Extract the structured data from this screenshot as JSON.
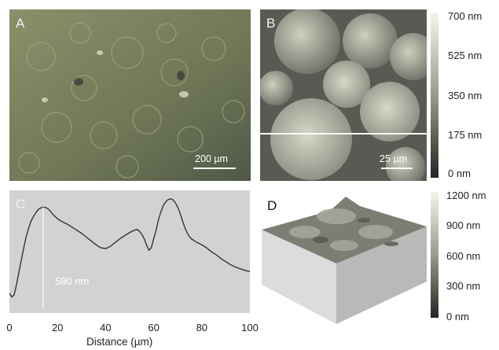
{
  "panels": {
    "a": {
      "label": "A",
      "scale_bar": "200 µm"
    },
    "b": {
      "label": "B",
      "scale_bar": "25 µm",
      "colorbar_labels": [
        "700 nm",
        "525 nm",
        "350 nm",
        "175 nm",
        "0 nm"
      ]
    },
    "c": {
      "label": "C",
      "annotation": "590 nm"
    },
    "d": {
      "label": "D",
      "colorbar_labels": [
        "1200 nm",
        "900 nm",
        "600 nm",
        "300 nm",
        "0 nm"
      ]
    }
  },
  "chart_data": {
    "type": "line",
    "xlabel": "Distance (µm)",
    "ylabel": "",
    "xlim": [
      0,
      100
    ],
    "ylim": [
      -100,
      700
    ],
    "x_ticks": [
      "0",
      "20",
      "40",
      "60",
      "80",
      "100"
    ],
    "grid": false,
    "series": [
      {
        "x": [
          0,
          1,
          2,
          3,
          4,
          5,
          6,
          7,
          8,
          9,
          10,
          11,
          12,
          13,
          14,
          15,
          16,
          17,
          18,
          19,
          20,
          22,
          24,
          26,
          28,
          30,
          32,
          34,
          36,
          38,
          40,
          42,
          44,
          46,
          48,
          50,
          52,
          53,
          54,
          55,
          56,
          57,
          58,
          59,
          60,
          61,
          62,
          63,
          64,
          65,
          66,
          67,
          68,
          69,
          70,
          71,
          72,
          73,
          74,
          75,
          76,
          77,
          78,
          80,
          82,
          84,
          86,
          88,
          90,
          92,
          94,
          96,
          98,
          100
        ],
        "y": [
          30,
          5,
          20,
          90,
          170,
          250,
          330,
          400,
          455,
          500,
          530,
          555,
          575,
          585,
          590,
          588,
          580,
          565,
          545,
          530,
          515,
          495,
          480,
          460,
          440,
          420,
          395,
          370,
          345,
          325,
          320,
          335,
          360,
          385,
          405,
          425,
          440,
          445,
          435,
          415,
          385,
          345,
          310,
          325,
          385,
          440,
          510,
          560,
          600,
          625,
          640,
          645,
          638,
          620,
          590,
          550,
          500,
          455,
          420,
          395,
          380,
          370,
          360,
          345,
          325,
          300,
          280,
          255,
          235,
          215,
          200,
          188,
          178,
          170
        ]
      }
    ]
  }
}
